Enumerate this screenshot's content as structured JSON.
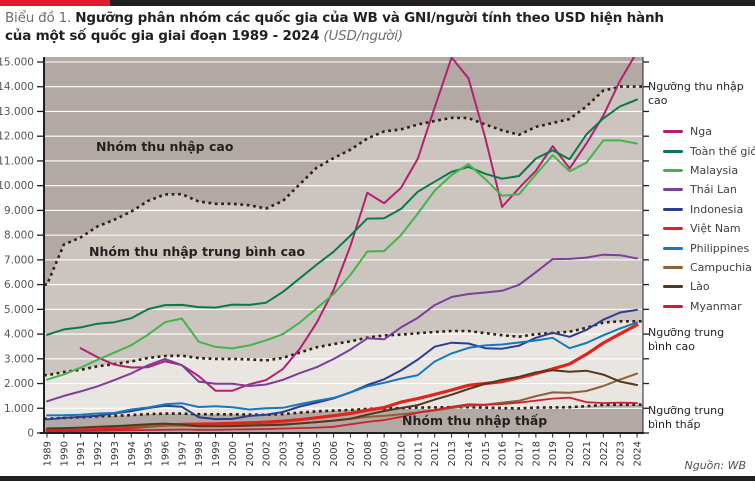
{
  "accent": {
    "red": "#e4182c",
    "dark": "#231f20"
  },
  "title": {
    "prefix": "Biểu đồ 1.",
    "bold_line1": "Ngưỡng phân nhóm các quốc gia của WB và GNI/người tính theo USD hiện hành",
    "bold_line2": "của một số quốc gia giai đoạn 1989 - 2024",
    "unit": "(USD/người)"
  },
  "source": "Nguồn: WB",
  "chart_data": {
    "type": "line",
    "title": "Ngưỡng phân nhóm các quốc gia của WB và GNI/người tính theo USD hiện hành của một số quốc gia giai đoạn 1989 - 2024",
    "ylabel": "USD/người",
    "xlabel": "",
    "grid": true,
    "legend_position": "right",
    "ylim": [
      0,
      15200
    ],
    "ytick_step": 1000,
    "ytick_labels": [
      "0",
      "1.000",
      "2.000",
      "3.000",
      "4.000",
      "5.000",
      "6.000",
      "7.000",
      "8.000",
      "9.000",
      "10.000",
      "11.000",
      "12.000",
      "13.000",
      "14.000",
      "15.000"
    ],
    "x_years": [
      1989,
      1990,
      1991,
      1992,
      1993,
      1994,
      1995,
      1996,
      1997,
      1998,
      1999,
      2000,
      2001,
      2002,
      2003,
      2004,
      2005,
      2006,
      2007,
      2008,
      2009,
      2010,
      2011,
      2012,
      2013,
      2014,
      2015,
      2016,
      2017,
      2018,
      2019,
      2020,
      2021,
      2022,
      2023,
      2024
    ],
    "band_labels": {
      "high": "Nhóm thu nhập cao",
      "upper_middle": "Nhóm thu nhập trung bình cao",
      "low": "Nhóm thu nhập thấp"
    },
    "threshold_labels": {
      "high": "Ngưỡng thu nhập cao",
      "upper_middle": "Ngưỡng trung bình cao",
      "lower_middle": "Ngưỡng trung bình thấp"
    },
    "band_colors": {
      "outer": "#b3a9a4",
      "upper": "#ccc4bf",
      "middle": "#e9e5e1"
    },
    "threshold_style": {
      "color": "#30200f",
      "dash": "2.8 3.6",
      "width": 2.6
    },
    "thresholds": [
      {
        "id": "high",
        "name": "Ngưỡng thu nhập cao",
        "values": [
          6000,
          7620,
          7910,
          8355,
          8625,
          8955,
          9385,
          9645,
          9655,
          9360,
          9265,
          9265,
          9205,
          9075,
          9385,
          10065,
          10725,
          11115,
          11455,
          11905,
          12195,
          12275,
          12475,
          12615,
          12745,
          12735,
          12475,
          12235,
          12055,
          12375,
          12535,
          12695,
          13205,
          13845,
          14005,
          14005
        ]
      },
      {
        "id": "upper_middle",
        "name": "Ngưỡng trung bình cao",
        "values": [
          2335,
          2465,
          2555,
          2695,
          2785,
          2895,
          3035,
          3115,
          3125,
          3030,
          2995,
          2995,
          2975,
          2935,
          3035,
          3255,
          3465,
          3595,
          3705,
          3855,
          3945,
          3975,
          4035,
          4085,
          4125,
          4125,
          4035,
          3955,
          3895,
          3995,
          4045,
          4095,
          4255,
          4465,
          4515,
          4515
        ]
      },
      {
        "id": "lower_middle",
        "name": "Ngưỡng trung bình thấp",
        "values": [
          580,
          610,
          635,
          675,
          695,
          725,
          765,
          785,
          785,
          760,
          755,
          755,
          745,
          735,
          765,
          825,
          875,
          905,
          935,
          975,
          995,
          1005,
          1025,
          1035,
          1045,
          1045,
          1025,
          1005,
          995,
          1025,
          1035,
          1045,
          1085,
          1135,
          1145,
          1145
        ]
      }
    ],
    "series": [
      {
        "name": "Nga",
        "color": "#b4216f",
        "width": 2,
        "values": [
          null,
          null,
          3430,
          3060,
          2760,
          2650,
          2660,
          2900,
          2740,
          2300,
          1710,
          1710,
          1970,
          2140,
          2590,
          3410,
          4460,
          5780,
          7560,
          9710,
          9290,
          9910,
          11100,
          13170,
          15180,
          14350,
          11930,
          9140,
          9900,
          10600,
          11600,
          10700,
          11700,
          12830,
          14250,
          15400
        ]
      },
      {
        "name": "Toàn thế giới",
        "color": "#0a7a4b",
        "width": 2,
        "values": [
          3970,
          4190,
          4270,
          4420,
          4480,
          4640,
          5010,
          5170,
          5180,
          5090,
          5070,
          5190,
          5180,
          5270,
          5710,
          6260,
          6810,
          7330,
          7980,
          8670,
          8680,
          9060,
          9760,
          10160,
          10560,
          10760,
          10480,
          10280,
          10390,
          11100,
          11430,
          11070,
          12070,
          12720,
          13210,
          13480
        ]
      },
      {
        "name": "Malaysia",
        "color": "#45b549",
        "width": 2,
        "values": [
          2160,
          2370,
          2650,
          2960,
          3250,
          3550,
          3980,
          4480,
          4630,
          3690,
          3480,
          3420,
          3540,
          3750,
          4000,
          4470,
          5040,
          5620,
          6390,
          7340,
          7360,
          8000,
          8880,
          9800,
          10430,
          10870,
          10260,
          9590,
          9650,
          10460,
          11230,
          10580,
          10930,
          11830,
          11830,
          11700
        ]
      },
      {
        "name": "Thái Lan",
        "color": "#7b3f9d",
        "width": 2,
        "values": [
          1280,
          1500,
          1680,
          1890,
          2140,
          2410,
          2740,
          2990,
          2740,
          2080,
          1990,
          1990,
          1900,
          1960,
          2150,
          2420,
          2660,
          2990,
          3370,
          3830,
          3790,
          4270,
          4660,
          5170,
          5500,
          5620,
          5680,
          5750,
          5990,
          6500,
          7030,
          7040,
          7090,
          7210,
          7190,
          7060
        ]
      },
      {
        "name": "Indonesia",
        "color": "#2e3c94",
        "width": 2,
        "values": [
          550,
          610,
          650,
          700,
          790,
          880,
          1010,
          1100,
          1060,
          640,
          560,
          570,
          690,
          740,
          850,
          1070,
          1230,
          1400,
          1640,
          1940,
          2170,
          2530,
          2970,
          3490,
          3650,
          3620,
          3430,
          3410,
          3530,
          3850,
          4050,
          3890,
          4170,
          4580,
          4870,
          4980
        ]
      },
      {
        "name": "Việt Nam",
        "color": "#e2231b",
        "width": 3.2,
        "values": [
          95,
          120,
          110,
          140,
          180,
          220,
          270,
          320,
          350,
          360,
          370,
          390,
          410,
          440,
          480,
          540,
          620,
          700,
          790,
          920,
          1030,
          1250,
          1390,
          1560,
          1740,
          1930,
          2000,
          2080,
          2230,
          2400,
          2590,
          2790,
          3180,
          3640,
          4010,
          4370
        ]
      },
      {
        "name": "Philippines",
        "color": "#1579c0",
        "width": 2,
        "values": [
          710,
          720,
          740,
          790,
          810,
          950,
          1030,
          1160,
          1200,
          1050,
          1080,
          1040,
          950,
          1000,
          1020,
          1170,
          1300,
          1420,
          1640,
          1890,
          2030,
          2200,
          2340,
          2890,
          3220,
          3440,
          3540,
          3580,
          3660,
          3740,
          3850,
          3430,
          3640,
          3950,
          4230,
          4470
        ]
      },
      {
        "name": "Campuchia",
        "color": "#8f5f35",
        "width": 2,
        "values": [
          null,
          null,
          null,
          null,
          240,
          250,
          280,
          300,
          300,
          280,
          290,
          300,
          310,
          330,
          350,
          390,
          440,
          500,
          570,
          650,
          690,
          760,
          830,
          910,
          1010,
          1100,
          1140,
          1230,
          1300,
          1490,
          1640,
          1630,
          1700,
          1900,
          2160,
          2400
        ]
      },
      {
        "name": "Lào",
        "color": "#53381d",
        "width": 2,
        "values": [
          180,
          200,
          220,
          250,
          280,
          310,
          350,
          380,
          340,
          270,
          270,
          280,
          300,
          310,
          330,
          390,
          440,
          500,
          580,
          740,
          890,
          1010,
          1130,
          1350,
          1550,
          1780,
          1990,
          2150,
          2270,
          2450,
          2540,
          2480,
          2520,
          2360,
          2080,
          1940
        ]
      },
      {
        "name": "Myanmar",
        "color": "#cb2030",
        "width": 1.8,
        "values": [
          60,
          70,
          80,
          90,
          100,
          110,
          120,
          130,
          140,
          130,
          130,
          140,
          150,
          160,
          180,
          200,
          220,
          250,
          350,
          450,
          520,
          650,
          820,
          930,
          1060,
          1160,
          1140,
          1170,
          1230,
          1310,
          1390,
          1430,
          1250,
          1210,
          1230,
          1210
        ]
      }
    ]
  }
}
